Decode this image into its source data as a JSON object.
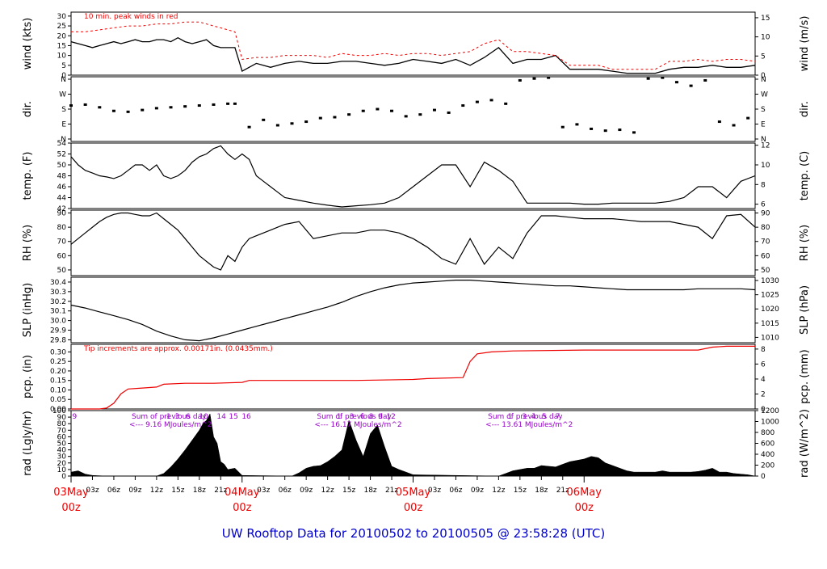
{
  "title": "UW Rooftop Data for 20100502  to  20100505 @ 23:58:28  (UTC)",
  "chart_data": [
    {
      "type": "line",
      "panel": "wind",
      "ylabel": "wind (kts)",
      "ylabel_right": "wind (m/s)",
      "left_ticks": [
        "0",
        "5",
        "10",
        "15",
        "20",
        "25",
        "30"
      ],
      "right_ticks": [
        "0",
        "5",
        "10",
        "15"
      ],
      "ylim": [
        0,
        32
      ],
      "annotation": "10 min. peak winds in red",
      "series": [
        {
          "color": "#000000",
          "x": [
            0,
            1,
            2,
            3,
            4,
            5,
            6,
            7,
            8,
            9,
            10,
            11,
            12,
            13,
            14,
            15,
            16,
            17,
            18,
            19,
            20,
            21,
            22,
            23,
            24,
            26,
            28,
            30,
            32,
            34,
            36,
            38,
            40,
            42,
            44,
            46,
            48,
            50,
            52,
            54,
            56,
            58,
            60,
            62,
            64,
            66,
            68,
            70,
            72,
            74,
            76,
            78,
            80,
            82,
            84,
            86,
            88,
            90,
            92,
            94,
            96
          ],
          "y": [
            17,
            16,
            15,
            14,
            15,
            16,
            17,
            16,
            17,
            18,
            17,
            17,
            18,
            18,
            17,
            19,
            17,
            16,
            17,
            18,
            15,
            14,
            14,
            14,
            2,
            6,
            4,
            6,
            7,
            6,
            6,
            7,
            7,
            6,
            5,
            6,
            8,
            7,
            6,
            8,
            5,
            9,
            14,
            6,
            8,
            8,
            10,
            3,
            3,
            3,
            2,
            1,
            1,
            1,
            3,
            4,
            4,
            5,
            4,
            4,
            5
          ]
        },
        {
          "color": "#ee0000",
          "dashed": true,
          "x": [
            0,
            2,
            4,
            6,
            8,
            10,
            12,
            14,
            16,
            18,
            20,
            22,
            23,
            24,
            26,
            28,
            30,
            32,
            34,
            36,
            38,
            40,
            42,
            44,
            46,
            48,
            50,
            52,
            54,
            56,
            58,
            60,
            62,
            64,
            66,
            68,
            70,
            72,
            74,
            76,
            78,
            80,
            82,
            84,
            86,
            88,
            90,
            92,
            94,
            96
          ],
          "y": [
            22,
            22,
            23,
            24,
            25,
            25,
            26,
            26,
            27,
            27,
            25,
            23,
            22,
            8,
            9,
            9,
            10,
            10,
            10,
            9,
            11,
            10,
            10,
            11,
            10,
            11,
            11,
            10,
            11,
            12,
            16,
            18,
            12,
            12,
            11,
            10,
            5,
            5,
            5,
            3,
            3,
            3,
            3,
            7,
            7,
            8,
            7,
            8,
            8,
            7
          ]
        }
      ]
    },
    {
      "type": "scatter",
      "panel": "dir",
      "ylabel": "dir.",
      "ylabel_right": "dir.",
      "left_ticks": [
        "N",
        "E",
        "S",
        "W",
        "N"
      ],
      "right_ticks": [
        "N",
        "E",
        "S",
        "W",
        "N"
      ],
      "ylim": [
        0,
        360
      ],
      "x": [
        0,
        2,
        4,
        6,
        8,
        10,
        12,
        14,
        16,
        18,
        20,
        22,
        23,
        25,
        27,
        29,
        31,
        33,
        35,
        37,
        39,
        41,
        43,
        45,
        47,
        49,
        51,
        53,
        55,
        57,
        59,
        61,
        63,
        65,
        67,
        69,
        71,
        73,
        75,
        77,
        79,
        81,
        83,
        85,
        87,
        89,
        91,
        93,
        95
      ],
      "y": [
        200,
        205,
        190,
        170,
        165,
        175,
        185,
        190,
        195,
        200,
        205,
        210,
        210,
        80,
        120,
        90,
        100,
        110,
        130,
        135,
        150,
        170,
        180,
        170,
        140,
        150,
        175,
        160,
        200,
        220,
        230,
        210,
        340,
        350,
        355,
        80,
        95,
        70,
        60,
        65,
        50,
        350,
        355,
        330,
        310,
        340,
        110,
        90,
        130
      ]
    },
    {
      "type": "line",
      "panel": "temp",
      "ylabel": "temp. (F)",
      "ylabel_right": "temp. (C)",
      "left_ticks": [
        "42",
        "44",
        "46",
        "48",
        "50",
        "52",
        "54"
      ],
      "right_ticks": [
        "6",
        "8",
        "10",
        "12"
      ],
      "ylim": [
        42,
        54
      ],
      "x": [
        0,
        1,
        2,
        3,
        4,
        5,
        6,
        7,
        8,
        9,
        10,
        11,
        12,
        13,
        14,
        15,
        16,
        17,
        18,
        19,
        20,
        21,
        22,
        23,
        24,
        25,
        26,
        27,
        28,
        29,
        30,
        32,
        34,
        36,
        38,
        40,
        42,
        44,
        46,
        48,
        50,
        52,
        54,
        56,
        58,
        60,
        62,
        64,
        66,
        68,
        70,
        72,
        74,
        76,
        78,
        80,
        82,
        84,
        86,
        88,
        90,
        92,
        94,
        96
      ],
      "y": [
        51.5,
        50,
        49,
        48.5,
        48,
        47.8,
        47.5,
        48,
        49,
        50,
        50,
        49,
        50,
        48,
        47.5,
        48,
        49,
        50.5,
        51.5,
        52,
        53,
        53.5,
        52,
        51,
        52,
        51,
        48,
        47,
        46,
        45,
        44,
        43.5,
        43,
        42.6,
        42.3,
        42.5,
        42.7,
        43,
        44,
        46,
        48,
        50,
        50,
        46,
        50.5,
        49,
        47,
        43,
        43,
        43,
        43,
        42.8,
        42.8,
        43,
        43,
        43,
        43,
        43.3,
        44,
        46,
        46,
        44,
        47,
        48
      ]
    },
    {
      "type": "line",
      "panel": "rh",
      "ylabel": "RH (%)",
      "ylabel_right": "RH (%)",
      "left_ticks": [
        "50",
        "60",
        "70",
        "80",
        "90"
      ],
      "right_ticks": [
        "50",
        "60",
        "70",
        "80",
        "90"
      ],
      "ylim": [
        46,
        92
      ],
      "x": [
        0,
        1,
        2,
        3,
        4,
        5,
        6,
        7,
        8,
        9,
        10,
        11,
        12,
        13,
        14,
        15,
        16,
        17,
        18,
        19,
        20,
        21,
        22,
        23,
        24,
        25,
        26,
        27,
        28,
        29,
        30,
        32,
        34,
        36,
        38,
        40,
        42,
        44,
        46,
        48,
        50,
        52,
        54,
        56,
        58,
        60,
        62,
        64,
        66,
        68,
        70,
        72,
        74,
        76,
        78,
        80,
        82,
        84,
        86,
        88,
        90,
        92,
        94,
        96
      ],
      "y": [
        68,
        72,
        76,
        80,
        84,
        87,
        89,
        90,
        90,
        89,
        88,
        88,
        90,
        86,
        82,
        78,
        72,
        66,
        60,
        56,
        52,
        50,
        60,
        56,
        66,
        72,
        74,
        76,
        78,
        80,
        82,
        84,
        72,
        74,
        76,
        76,
        78,
        78,
        76,
        72,
        66,
        58,
        54,
        72,
        54,
        66,
        58,
        76,
        88,
        88,
        87,
        86,
        86,
        86,
        85,
        84,
        84,
        84,
        82,
        80,
        72,
        88,
        89,
        80
      ]
    },
    {
      "type": "line",
      "panel": "slp",
      "ylabel": "SLP (inHg)",
      "ylabel_right": "SLP (hPa)",
      "left_ticks": [
        "29.8",
        "29.9",
        "30.0",
        "30.1",
        "30.2",
        "30.3",
        "30.4"
      ],
      "right_ticks": [
        "1010",
        "1015",
        "1020",
        "1025",
        "1030"
      ],
      "ylim": [
        29.77,
        30.45
      ],
      "x": [
        0,
        2,
        4,
        6,
        8,
        10,
        12,
        14,
        16,
        18,
        20,
        22,
        24,
        26,
        28,
        30,
        32,
        34,
        36,
        38,
        40,
        42,
        44,
        46,
        48,
        50,
        52,
        54,
        56,
        58,
        60,
        62,
        64,
        66,
        68,
        70,
        72,
        74,
        76,
        78,
        80,
        82,
        84,
        86,
        88,
        90,
        92,
        94,
        96
      ],
      "y": [
        30.16,
        30.13,
        30.09,
        30.05,
        30.01,
        29.96,
        29.89,
        29.84,
        29.8,
        29.79,
        29.82,
        29.86,
        29.9,
        29.94,
        29.98,
        30.02,
        30.06,
        30.1,
        30.14,
        30.19,
        30.25,
        30.3,
        30.34,
        30.37,
        30.39,
        30.4,
        30.41,
        30.42,
        30.42,
        30.41,
        30.4,
        30.39,
        30.38,
        30.37,
        30.36,
        30.36,
        30.35,
        30.34,
        30.33,
        30.32,
        30.32,
        30.32,
        30.32,
        30.32,
        30.33,
        30.33,
        30.33,
        30.33,
        30.32
      ]
    },
    {
      "type": "line",
      "panel": "pcp",
      "ylabel": "pcp. (in)",
      "ylabel_right": "pcp. (mm)",
      "left_ticks": [
        "0.00",
        "0.05",
        "0.10",
        "0.15",
        "0.20",
        "0.25",
        "0.30"
      ],
      "right_ticks": [
        "0",
        "2",
        "4",
        "6",
        "8"
      ],
      "ylim": [
        0,
        0.34
      ],
      "annotation": "Tip increments are approx. 0.00171in. (0.0435mm.)",
      "x": [
        0,
        4,
        5,
        6,
        7,
        8,
        10,
        12,
        13,
        16,
        20,
        24,
        25,
        30,
        40,
        48,
        50,
        55,
        56,
        57,
        59,
        62,
        72,
        80,
        88,
        90,
        92,
        96
      ],
      "y": [
        0,
        0,
        0.005,
        0.03,
        0.08,
        0.105,
        0.11,
        0.115,
        0.13,
        0.135,
        0.135,
        0.14,
        0.15,
        0.15,
        0.15,
        0.155,
        0.16,
        0.165,
        0.25,
        0.29,
        0.3,
        0.305,
        0.31,
        0.31,
        0.31,
        0.325,
        0.33,
        0.33
      ]
    },
    {
      "type": "area",
      "panel": "rad",
      "ylabel": "rad (Lgly/hr)",
      "ylabel_right": "rad (W/m^2)",
      "left_ticks": [
        "0",
        "10",
        "20",
        "30",
        "40",
        "50",
        "60",
        "70",
        "80",
        "90",
        "100"
      ],
      "right_ticks": [
        "0",
        "200",
        "400",
        "600",
        "800",
        "1000",
        "1200"
      ],
      "ylim": [
        0,
        100
      ],
      "hour_ticks": [
        "9",
        "1",
        "3",
        "6",
        "10",
        "14",
        "15",
        "16",
        "1",
        "3",
        "6",
        "8",
        "9",
        "12",
        "1",
        "3",
        "4",
        "5",
        "7"
      ],
      "daily_sums": [
        {
          "line1": "Sum of previous day",
          "line2": "<--- 9.16 MJoules/m^2"
        },
        {
          "line1": "Sum of previous day",
          "line2": "<--- 16.17 MJoules/m^2"
        },
        {
          "line1": "Sum of previous day",
          "line2": "<--- 13.61 MJoules/m^2"
        }
      ],
      "x": [
        0,
        1,
        2,
        3,
        5,
        12,
        13,
        14,
        15,
        16,
        17,
        18,
        18.5,
        19,
        19.5,
        20,
        20.5,
        21,
        21.5,
        22,
        23,
        24,
        31,
        32,
        33,
        34,
        35,
        36,
        37,
        38,
        39,
        40,
        41,
        42,
        43,
        44,
        45,
        46,
        47,
        48,
        60,
        61,
        62,
        63,
        64,
        65,
        66,
        67,
        68,
        69,
        70,
        71,
        72,
        73,
        74,
        75,
        76,
        77,
        78,
        79,
        80,
        81,
        82,
        83,
        84,
        85,
        86,
        87,
        88,
        89,
        90,
        91,
        92,
        93,
        94,
        95,
        96
      ],
      "y": [
        6,
        8,
        3,
        1,
        0,
        0,
        4,
        14,
        26,
        40,
        55,
        70,
        80,
        85,
        95,
        60,
        50,
        22,
        18,
        10,
        12,
        1,
        0,
        5,
        12,
        15,
        16,
        22,
        30,
        40,
        85,
        55,
        30,
        65,
        78,
        45,
        15,
        10,
        6,
        2,
        0,
        4,
        8,
        10,
        12,
        12,
        16,
        15,
        14,
        18,
        22,
        24,
        26,
        30,
        28,
        20,
        16,
        12,
        8,
        6,
        6,
        6,
        6,
        8,
        6,
        6,
        6,
        6,
        7,
        9,
        12,
        6,
        6,
        4,
        3,
        2,
        0
      ]
    }
  ],
  "x_axis": {
    "hour_labels": [
      "03z",
      "06z",
      "09z",
      "12z",
      "15z",
      "18z",
      "21z"
    ],
    "day_labels": [
      {
        "date": "03May",
        "hour": "00z"
      },
      {
        "date": "04May",
        "hour": "00z"
      },
      {
        "date": "05May",
        "hour": "00z"
      },
      {
        "date": "06May",
        "hour": "00z"
      }
    ]
  },
  "colors": {
    "line": "#000000",
    "peak": "#ee0000",
    "annotation": "#ee0000",
    "solar": "#9900cc",
    "title": "#0000cc"
  }
}
